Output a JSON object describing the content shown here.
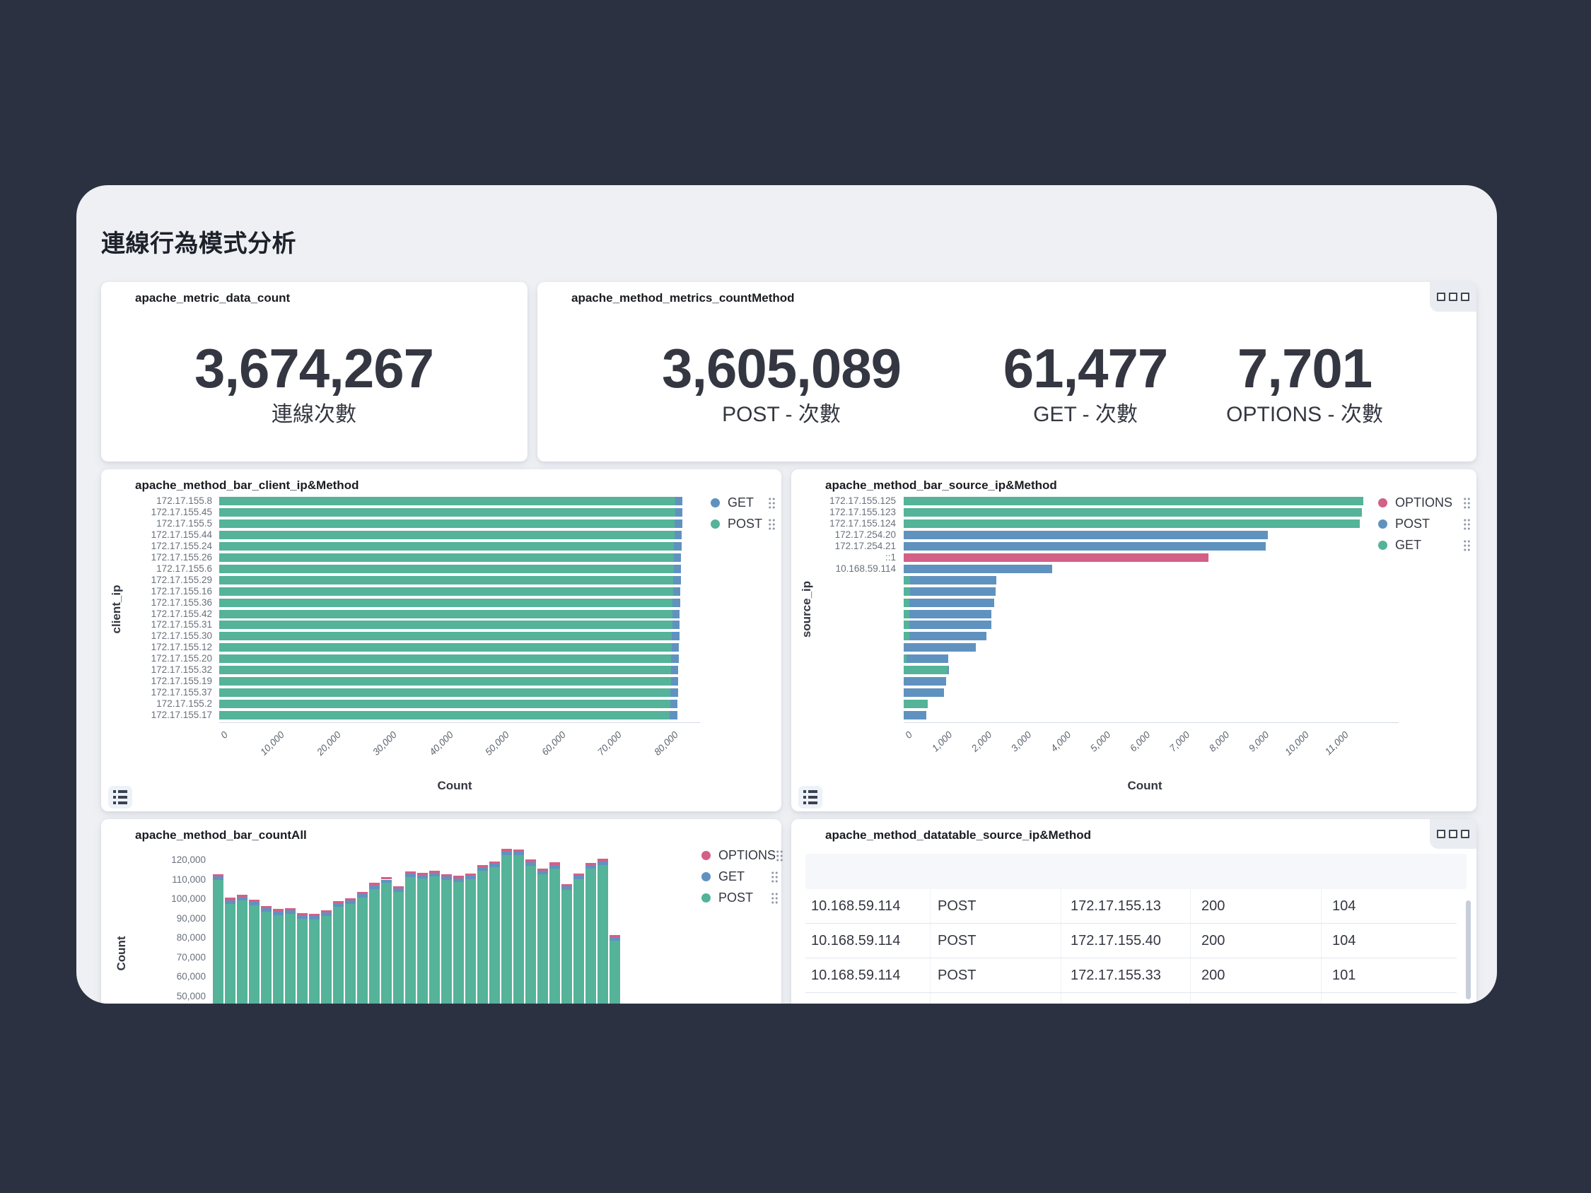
{
  "page": {
    "title": "連線行為模式分析"
  },
  "colors": {
    "background_dark": "#2b3140",
    "surface": "#eef0f4",
    "panel": "#ffffff",
    "post_green": "#54b399",
    "get_blue": "#6092c0",
    "options_pink": "#d36086",
    "text_dark": "#343741",
    "axis_gray": "#69707d"
  },
  "icons": {
    "panel_options_icon": "three-small-squares",
    "legend_action_icon": "six-dot-grid",
    "legend_toggle_icon": "list-bullets"
  },
  "panels": {
    "metric1": {
      "title": "apache_metric_data_count",
      "value": "3,674,267",
      "label": "連線次數"
    },
    "metric2": {
      "title": "apache_method_metrics_countMethod",
      "metrics": [
        {
          "value": "3,605,089",
          "label": "POST - 次數"
        },
        {
          "value": "61,477",
          "label": "GET - 次數"
        },
        {
          "value": "7,701",
          "label": "OPTIONS - 次數"
        }
      ]
    }
  },
  "chart_data": [
    {
      "type": "bar",
      "orientation": "horizontal",
      "title": "apache_method_bar_client_ip&Method",
      "xlabel": "Count",
      "ylabel": "client_ip",
      "xlim": [
        0,
        85500
      ],
      "grid": false,
      "legend_position": "right",
      "xticks": [
        0,
        10000,
        20000,
        30000,
        40000,
        50000,
        60000,
        70000,
        80000
      ],
      "xtick_labels": [
        "0",
        "10,000",
        "20,000",
        "30,000",
        "40,000",
        "50,000",
        "60,000",
        "70,000",
        "80,000"
      ],
      "categories": [
        "172.17.155.8",
        "172.17.155.45",
        "172.17.155.5",
        "172.17.155.44",
        "172.17.155.24",
        "172.17.155.26",
        "172.17.155.6",
        "172.17.155.29",
        "172.17.155.16",
        "172.17.155.36",
        "172.17.155.42",
        "172.17.155.31",
        "172.17.155.30",
        "172.17.155.12",
        "172.17.155.20",
        "172.17.155.32",
        "172.17.155.19",
        "172.17.155.37",
        "172.17.155.2",
        "172.17.155.17"
      ],
      "methods": {
        "POST": "#54b399",
        "GET": "#6092c0"
      },
      "series": [
        {
          "name": "POST",
          "values": [
            81100,
            81050,
            81000,
            80950,
            80900,
            80850,
            80800,
            80750,
            80700,
            80650,
            80600,
            80550,
            80500,
            80450,
            80400,
            80350,
            80300,
            80250,
            80200,
            80150
          ]
        },
        {
          "name": "GET",
          "values": [
            1300,
            1300,
            1300,
            1300,
            1300,
            1300,
            1300,
            1300,
            1300,
            1300,
            1300,
            1300,
            1300,
            1300,
            1300,
            1300,
            1300,
            1300,
            1300,
            1300
          ]
        }
      ],
      "legend": [
        {
          "label": "GET",
          "color": "#6092c0"
        },
        {
          "label": "POST",
          "color": "#54b399"
        }
      ]
    },
    {
      "type": "bar",
      "orientation": "horizontal",
      "title": "apache_method_bar_source_ip&Method",
      "xlabel": "Count",
      "ylabel": "source_ip",
      "xlim": [
        0,
        12500
      ],
      "grid": false,
      "legend_position": "right",
      "xticks": [
        0,
        1000,
        2000,
        3000,
        4000,
        5000,
        6000,
        7000,
        8000,
        9000,
        10000,
        11000
      ],
      "xtick_labels": [
        "0",
        "1,000",
        "2,000",
        "3,000",
        "4,000",
        "5,000",
        "6,000",
        "7,000",
        "8,000",
        "9,000",
        "10,000",
        "11,000"
      ],
      "methods": {
        "GET": "#54b399",
        "POST": "#6092c0",
        "OPTIONS": "#d36086"
      },
      "rows": [
        {
          "label": "172.17.155.125",
          "segments": [
            {
              "method": "GET",
              "value": 11600
            }
          ]
        },
        {
          "label": "172.17.155.123",
          "segments": [
            {
              "method": "GET",
              "value": 11580
            }
          ]
        },
        {
          "label": "172.17.155.124",
          "segments": [
            {
              "method": "GET",
              "value": 11520
            }
          ]
        },
        {
          "label": "172.17.254.20",
          "segments": [
            {
              "method": "POST",
              "value": 9200
            }
          ]
        },
        {
          "label": "172.17.254.21",
          "segments": [
            {
              "method": "POST",
              "value": 9150
            }
          ]
        },
        {
          "label": "::1",
          "segments": [
            {
              "method": "OPTIONS",
              "value": 7700
            }
          ]
        },
        {
          "label": "10.168.59.114",
          "segments": [
            {
              "method": "POST",
              "value": 3750
            }
          ]
        },
        {
          "label": "",
          "segments": [
            {
              "method": "GET",
              "value": 160
            },
            {
              "method": "POST",
              "value": 2180
            }
          ]
        },
        {
          "label": "",
          "segments": [
            {
              "method": "GET",
              "value": 160
            },
            {
              "method": "POST",
              "value": 2160
            }
          ]
        },
        {
          "label": "",
          "segments": [
            {
              "method": "GET",
              "value": 150
            },
            {
              "method": "POST",
              "value": 2140
            }
          ]
        },
        {
          "label": "",
          "segments": [
            {
              "method": "GET",
              "value": 150
            },
            {
              "method": "POST",
              "value": 2070
            }
          ]
        },
        {
          "label": "",
          "segments": [
            {
              "method": "GET",
              "value": 150
            },
            {
              "method": "POST",
              "value": 2060
            }
          ]
        },
        {
          "label": "",
          "segments": [
            {
              "method": "GET",
              "value": 140
            },
            {
              "method": "POST",
              "value": 1950
            }
          ]
        },
        {
          "label": "",
          "segments": [
            {
              "method": "POST",
              "value": 1820
            }
          ]
        },
        {
          "label": "",
          "segments": [
            {
              "method": "GET",
              "value": 80
            },
            {
              "method": "POST",
              "value": 1050
            }
          ]
        },
        {
          "label": "",
          "segments": [
            {
              "method": "GET",
              "value": 1110
            },
            {
              "method": "POST",
              "value": 30
            }
          ]
        },
        {
          "label": "",
          "segments": [
            {
              "method": "POST",
              "value": 1070
            }
          ]
        },
        {
          "label": "",
          "segments": [
            {
              "method": "POST",
              "value": 1020
            }
          ]
        },
        {
          "label": "",
          "segments": [
            {
              "method": "GET",
              "value": 610
            }
          ]
        },
        {
          "label": "",
          "segments": [
            {
              "method": "POST",
              "value": 570
            }
          ]
        }
      ],
      "legend": [
        {
          "label": "OPTIONS",
          "color": "#d36086"
        },
        {
          "label": "POST",
          "color": "#6092c0"
        },
        {
          "label": "GET",
          "color": "#54b399"
        }
      ]
    },
    {
      "type": "bar",
      "orientation": "vertical",
      "stacked": true,
      "title": "apache_method_bar_countAll",
      "ylabel": "Count",
      "grid": false,
      "legend_position": "right",
      "yticks": [
        120000,
        110000,
        100000,
        90000,
        80000,
        70000,
        60000,
        50000
      ],
      "ytick_labels": [
        "120,000",
        "110,000",
        "100,000",
        "90,000",
        "80,000",
        "70,000",
        "60,000",
        "50,000"
      ],
      "methods": {
        "POST": "#54b399",
        "GET": "#6092c0",
        "OPTIONS": "#d36086"
      },
      "series": [
        {
          "name": "POST",
          "values": [
            109800,
            97600,
            99300,
            96600,
            93400,
            91800,
            92300,
            89900,
            89500,
            91200,
            95900,
            97400,
            100700,
            105200,
            108200,
            103600,
            111300,
            110500,
            111700,
            109800,
            108900,
            110200,
            114500,
            116400,
            122700,
            122500,
            117200,
            112700,
            115800,
            104800,
            110200,
            115700,
            117600,
            78500
          ]
        },
        {
          "name": "GET",
          "values": [
            1800,
            1800,
            1800,
            1800,
            1800,
            1800,
            1800,
            1800,
            1800,
            1800,
            1800,
            1800,
            1800,
            1800,
            1800,
            1800,
            1800,
            1800,
            1800,
            1800,
            1800,
            1800,
            1800,
            1800,
            1800,
            1800,
            1800,
            1800,
            1800,
            1800,
            1800,
            1800,
            1800,
            1800
          ]
        },
        {
          "name": "OPTIONS",
          "values": [
            1200,
            1200,
            1200,
            1200,
            1200,
            1200,
            1200,
            1200,
            1200,
            1200,
            1200,
            1200,
            1200,
            1200,
            1200,
            1200,
            1200,
            1200,
            1200,
            1200,
            1200,
            1200,
            1200,
            1200,
            1200,
            1200,
            1200,
            1200,
            1200,
            1200,
            1200,
            1200,
            1200,
            1200
          ]
        }
      ],
      "legend": [
        {
          "label": "OPTIONS",
          "color": "#d36086"
        },
        {
          "label": "GET",
          "color": "#6092c0"
        },
        {
          "label": "POST",
          "color": "#54b399"
        }
      ]
    },
    {
      "type": "table",
      "title": "apache_method_datatable_source_ip&Method",
      "columns": [
        "",
        "",
        "",
        "",
        ""
      ],
      "rows": [
        [
          "10.168.59.114",
          "POST",
          "172.17.155.13",
          "200",
          "104"
        ],
        [
          "10.168.59.114",
          "POST",
          "172.17.155.40",
          "200",
          "104"
        ],
        [
          "10.168.59.114",
          "POST",
          "172.17.155.33",
          "200",
          "101"
        ]
      ]
    }
  ]
}
